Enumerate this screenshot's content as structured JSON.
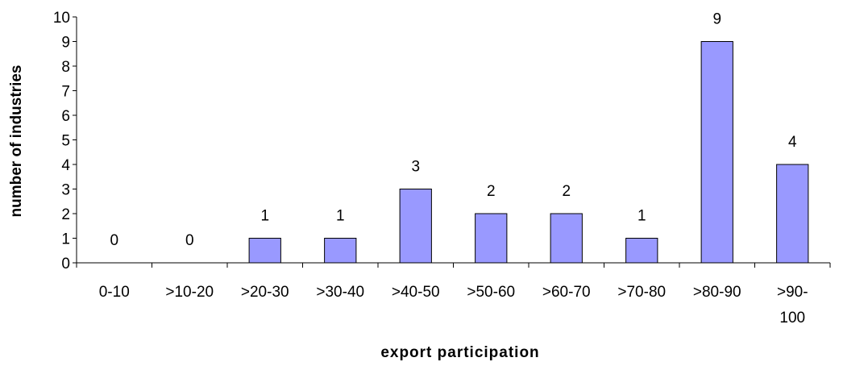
{
  "chart_data": {
    "type": "bar",
    "categories": [
      "0-10",
      ">10-20",
      ">20-30",
      ">30-40",
      ">40-50",
      ">50-60",
      ">60-70",
      ">70-80",
      ">80-90",
      ">90-100"
    ],
    "category_lines": [
      [
        "0-10"
      ],
      [
        ">10-20"
      ],
      [
        ">20-30"
      ],
      [
        ">30-40"
      ],
      [
        ">40-50"
      ],
      [
        ">50-60"
      ],
      [
        ">60-70"
      ],
      [
        ">70-80"
      ],
      [
        ">80-90"
      ],
      [
        ">90-",
        "100"
      ]
    ],
    "values": [
      0,
      0,
      1,
      1,
      3,
      2,
      2,
      1,
      9,
      4
    ],
    "data_labels": [
      "0",
      "0",
      "1",
      "1",
      "3",
      "2",
      "2",
      "1",
      "9",
      "4"
    ],
    "xlabel": "export participation",
    "ylabel": "number of industries",
    "ylim": [
      0,
      10
    ],
    "yticks": [
      0,
      1,
      2,
      3,
      4,
      5,
      6,
      7,
      8,
      9,
      10
    ],
    "bar_color": "#9999ff",
    "grid": false,
    "legend": "none"
  }
}
